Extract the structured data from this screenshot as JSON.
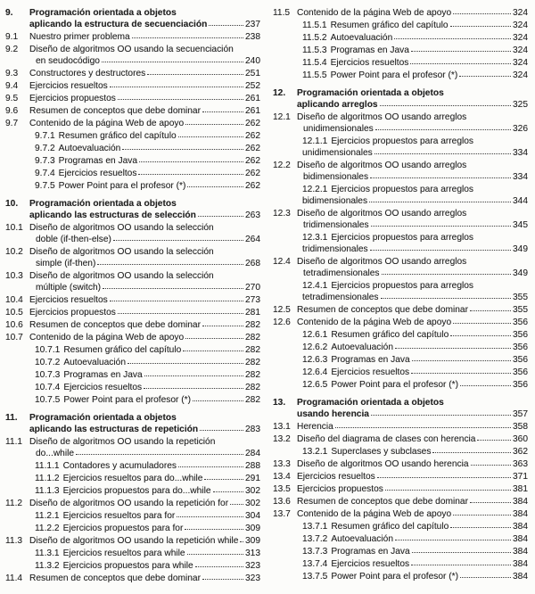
{
  "document": {
    "kind": "table-of-contents",
    "language": "es"
  },
  "colors": {
    "background": "#fcfcfa",
    "text": "#1f1f1f",
    "leader_dots": "#3b3b3b"
  },
  "toc": {
    "columns": [
      {
        "entries": [
          {
            "num": "9.",
            "level": "chapter",
            "lines": [
              "Programación orientada a objetos",
              "aplicando la estructura de secuenciación"
            ],
            "page": "237"
          },
          {
            "num": "9.1",
            "level": "section",
            "lines": [
              "Nuestro primer problema"
            ],
            "page": "238"
          },
          {
            "num": "9.2",
            "level": "section",
            "lines": [
              "Diseño de algoritmos OO usando la secuenciación",
              "en seudocódigo"
            ],
            "page": "240"
          },
          {
            "num": "9.3",
            "level": "section",
            "lines": [
              "Constructores y destructores"
            ],
            "page": "251"
          },
          {
            "num": "9.4",
            "level": "section",
            "lines": [
              "Ejercicios resueltos"
            ],
            "page": "252"
          },
          {
            "num": "9.5",
            "level": "section",
            "lines": [
              "Ejercicios propuestos"
            ],
            "page": "261"
          },
          {
            "num": "9.6",
            "level": "section",
            "lines": [
              "Resumen de conceptos que debe dominar"
            ],
            "page": "261"
          },
          {
            "num": "9.7",
            "level": "section",
            "lines": [
              "Contenido de la página Web de apoyo"
            ],
            "page": "262"
          },
          {
            "num": "9.7.1",
            "level": "subsection",
            "lines": [
              "Resumen gráfico del capítulo"
            ],
            "page": "262"
          },
          {
            "num": "9.7.2",
            "level": "subsection",
            "lines": [
              "Autoevaluación"
            ],
            "page": "262"
          },
          {
            "num": "9.7.3",
            "level": "subsection",
            "lines": [
              "Programas en Java"
            ],
            "page": "262"
          },
          {
            "num": "9.7.4",
            "level": "subsection",
            "lines": [
              "Ejercicios resueltos"
            ],
            "page": "262"
          },
          {
            "num": "9.7.5",
            "level": "subsection",
            "lines": [
              "Power Point para el profesor (*)"
            ],
            "page": "262"
          },
          {
            "num": "10.",
            "level": "chapter",
            "lines": [
              "Programación orientada a objetos",
              "aplicando las estructuras de selección"
            ],
            "page": "263"
          },
          {
            "num": "10.1",
            "level": "section",
            "lines": [
              "Diseño de algoritmos OO usando la selección",
              "doble (if-then-else)"
            ],
            "page": "264"
          },
          {
            "num": "10.2",
            "level": "section",
            "lines": [
              "Diseño de algoritmos OO usando la selección",
              "simple (if-then)"
            ],
            "page": "268"
          },
          {
            "num": "10.3",
            "level": "section",
            "lines": [
              "Diseño de algoritmos OO usando la selección",
              "múltiple (switch)"
            ],
            "page": "270"
          },
          {
            "num": "10.4",
            "level": "section",
            "lines": [
              "Ejercicios resueltos"
            ],
            "page": "273"
          },
          {
            "num": "10.5",
            "level": "section",
            "lines": [
              "Ejercicios propuestos"
            ],
            "page": "281"
          },
          {
            "num": "10.6",
            "level": "section",
            "lines": [
              "Resumen de conceptos que debe dominar"
            ],
            "page": "282"
          },
          {
            "num": "10.7",
            "level": "section",
            "lines": [
              "Contenido de la página Web de apoyo"
            ],
            "page": "282"
          },
          {
            "num": "10.7.1",
            "level": "subsection",
            "lines": [
              "Resumen gráfico del capítulo"
            ],
            "page": "282"
          },
          {
            "num": "10.7.2",
            "level": "subsection",
            "lines": [
              "Autoevaluación"
            ],
            "page": "282"
          },
          {
            "num": "10.7.3",
            "level": "subsection",
            "lines": [
              "Programas en Java"
            ],
            "page": "282"
          },
          {
            "num": "10.7.4",
            "level": "subsection",
            "lines": [
              "Ejercicios resueltos"
            ],
            "page": "282"
          },
          {
            "num": "10.7.5",
            "level": "subsection",
            "lines": [
              "Power Point para el profesor (*)"
            ],
            "page": "282"
          },
          {
            "num": "11.",
            "level": "chapter",
            "lines": [
              "Programación orientada a objetos",
              "aplicando las estructuras de repetición"
            ],
            "page": "283"
          },
          {
            "num": "11.1",
            "level": "section",
            "lines": [
              "Diseño de algoritmos OO usando la repetición",
              "do...while"
            ],
            "page": "284"
          },
          {
            "num": "11.1.1",
            "level": "subsection",
            "lines": [
              "Contadores y acumuladores"
            ],
            "page": "288"
          },
          {
            "num": "11.1.2",
            "level": "subsection",
            "lines": [
              "Ejercicios resueltos para do...while"
            ],
            "page": "291"
          },
          {
            "num": "11.1.3",
            "level": "subsection",
            "lines": [
              "Ejercicios propuestos para do...while"
            ],
            "page": "302"
          },
          {
            "num": "11.2",
            "level": "section",
            "lines": [
              "Diseño de algoritmos OO usando la repetición for"
            ],
            "page": "302"
          },
          {
            "num": "11.2.1",
            "level": "subsection",
            "lines": [
              "Ejercicios resueltos para for"
            ],
            "page": "304"
          },
          {
            "num": "11.2.2",
            "level": "subsection",
            "lines": [
              "Ejercicios propuestos para for"
            ],
            "page": "309"
          },
          {
            "num": "11.3",
            "level": "section",
            "lines": [
              "Diseño de algoritmos OO usando la repetición while"
            ],
            "page": "309"
          },
          {
            "num": "11.3.1",
            "level": "subsection",
            "lines": [
              "Ejercicios resueltos para while"
            ],
            "page": "313"
          },
          {
            "num": "11.3.2",
            "level": "subsection",
            "lines": [
              "Ejercicios propuestos para while"
            ],
            "page": "323"
          },
          {
            "num": "11.4",
            "level": "section",
            "lines": [
              "Resumen de conceptos que debe dominar"
            ],
            "page": "323"
          }
        ]
      },
      {
        "entries": [
          {
            "num": "11.5",
            "level": "section",
            "lines": [
              "Contenido de la página Web de apoyo"
            ],
            "page": "324"
          },
          {
            "num": "11.5.1",
            "level": "subsection",
            "lines": [
              "Resumen gráfico del capítulo"
            ],
            "page": "324"
          },
          {
            "num": "11.5.2",
            "level": "subsection",
            "lines": [
              "Autoevaluación"
            ],
            "page": "324"
          },
          {
            "num": "11.5.3",
            "level": "subsection",
            "lines": [
              "Programas en Java"
            ],
            "page": "324"
          },
          {
            "num": "11.5.4",
            "level": "subsection",
            "lines": [
              "Ejercicios resueltos"
            ],
            "page": "324"
          },
          {
            "num": "11.5.5",
            "level": "subsection",
            "lines": [
              "Power Point para el profesor (*)"
            ],
            "page": "324"
          },
          {
            "num": "12.",
            "level": "chapter",
            "lines": [
              "Programación orientada a objetos",
              "aplicando arreglos"
            ],
            "page": "325"
          },
          {
            "num": "12.1",
            "level": "section",
            "lines": [
              "Diseño de algoritmos OO usando arreglos",
              "unidimensionales"
            ],
            "page": "326"
          },
          {
            "num": "12.1.1",
            "level": "subsection",
            "lines": [
              "Ejercicios propuestos para arreglos",
              "unidimensionales"
            ],
            "page": "334"
          },
          {
            "num": "12.2",
            "level": "section",
            "lines": [
              "Diseño de algoritmos OO usando arreglos",
              "bidimensionales"
            ],
            "page": "334"
          },
          {
            "num": "12.2.1",
            "level": "subsection",
            "lines": [
              "Ejercicios propuestos para arreglos",
              "bidimensionales"
            ],
            "page": "344"
          },
          {
            "num": "12.3",
            "level": "section",
            "lines": [
              "Diseño de algoritmos OO usando arreglos",
              "tridimensionales"
            ],
            "page": "345"
          },
          {
            "num": "12.3.1",
            "level": "subsection",
            "lines": [
              "Ejercicios propuestos para arreglos",
              "tridimensionales"
            ],
            "page": "349"
          },
          {
            "num": "12.4",
            "level": "section",
            "lines": [
              "Diseño de algoritmos OO usando arreglos",
              "tetradimensionales"
            ],
            "page": "349"
          },
          {
            "num": "12.4.1",
            "level": "subsection",
            "lines": [
              "Ejercicios propuestos para arreglos",
              "tetradimensionales"
            ],
            "page": "355"
          },
          {
            "num": "12.5",
            "level": "section",
            "lines": [
              "Resumen de conceptos que debe dominar"
            ],
            "page": "355"
          },
          {
            "num": "12.6",
            "level": "section",
            "lines": [
              "Contenido de la página Web de apoyo"
            ],
            "page": "356"
          },
          {
            "num": "12.6.1",
            "level": "subsection",
            "lines": [
              "Resumen gráfico del capítulo"
            ],
            "page": "356"
          },
          {
            "num": "12.6.2",
            "level": "subsection",
            "lines": [
              "Autoevaluación"
            ],
            "page": "356"
          },
          {
            "num": "12.6.3",
            "level": "subsection",
            "lines": [
              "Programas en Java"
            ],
            "page": "356"
          },
          {
            "num": "12.6.4",
            "level": "subsection",
            "lines": [
              "Ejercicios resueltos"
            ],
            "page": "356"
          },
          {
            "num": "12.6.5",
            "level": "subsection",
            "lines": [
              "Power Point para el profesor (*)"
            ],
            "page": "356"
          },
          {
            "num": "13.",
            "level": "chapter",
            "lines": [
              "Programación orientada a objetos",
              "usando herencia"
            ],
            "page": "357"
          },
          {
            "num": "13.1",
            "level": "section",
            "lines": [
              "Herencia"
            ],
            "page": "358"
          },
          {
            "num": "13.2",
            "level": "section",
            "lines": [
              "Diseño del diagrama de clases con herencia"
            ],
            "page": "360"
          },
          {
            "num": "13.2.1",
            "level": "subsection",
            "lines": [
              "Superclases y subclases"
            ],
            "page": "362"
          },
          {
            "num": "13.3",
            "level": "section",
            "lines": [
              "Diseño de algoritmos OO usando herencia"
            ],
            "page": "363"
          },
          {
            "num": "13.4",
            "level": "section",
            "lines": [
              "Ejercicios resueltos"
            ],
            "page": "371"
          },
          {
            "num": "13.5",
            "level": "section",
            "lines": [
              "Ejercicios propuestos"
            ],
            "page": "381"
          },
          {
            "num": "13.6",
            "level": "section",
            "lines": [
              "Resumen de conceptos que debe dominar"
            ],
            "page": "384"
          },
          {
            "num": "13.7",
            "level": "section",
            "lines": [
              "Contenido de la página Web de apoyo"
            ],
            "page": "384"
          },
          {
            "num": "13.7.1",
            "level": "subsection",
            "lines": [
              "Resumen gráfico del capítulo"
            ],
            "page": "384"
          },
          {
            "num": "13.7.2",
            "level": "subsection",
            "lines": [
              "Autoevaluación"
            ],
            "page": "384"
          },
          {
            "num": "13.7.3",
            "level": "subsection",
            "lines": [
              "Programas en Java"
            ],
            "page": "384"
          },
          {
            "num": "13.7.4",
            "level": "subsection",
            "lines": [
              "Ejercicios resueltos"
            ],
            "page": "384"
          },
          {
            "num": "13.7.5",
            "level": "subsection",
            "lines": [
              "Power Point para el profesor (*)"
            ],
            "page": "384"
          }
        ]
      }
    ]
  }
}
